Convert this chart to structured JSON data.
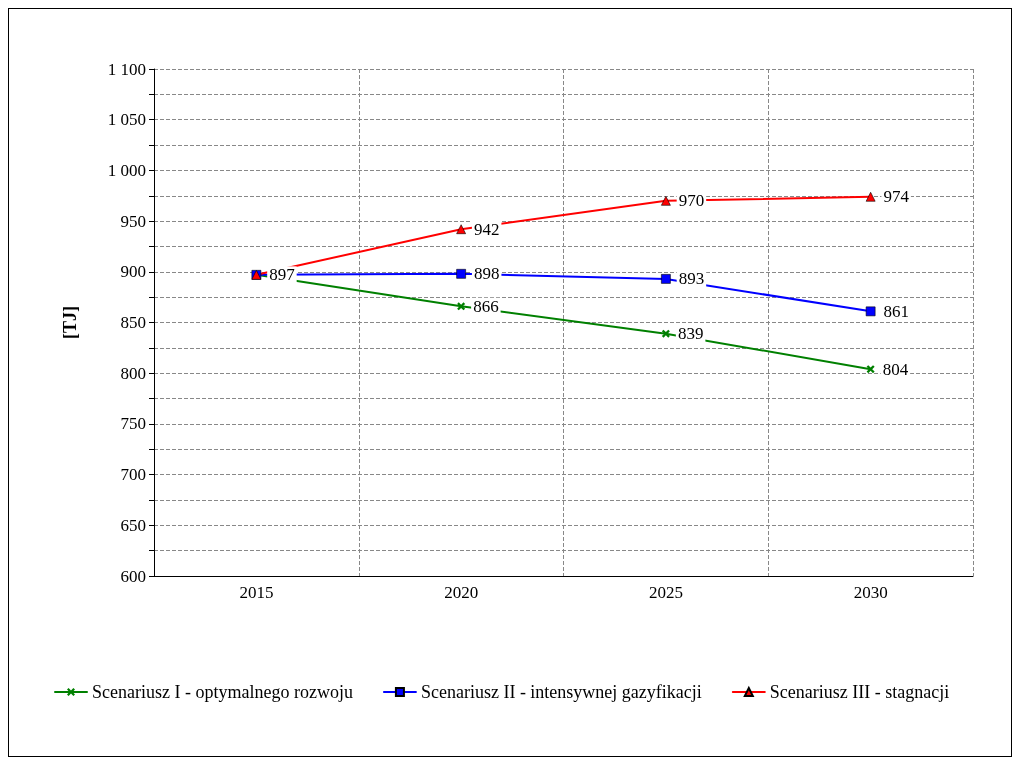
{
  "chart_data": {
    "type": "line",
    "ylabel": "[TJ]",
    "categories": [
      "2015",
      "2020",
      "2025",
      "2030"
    ],
    "ylim": [
      600,
      1100
    ],
    "yticks": [
      600,
      {
        "value": 625,
        "label": null
      },
      650,
      {
        "value": 675,
        "label": null
      },
      700,
      {
        "value": 725,
        "label": null
      },
      750,
      {
        "value": 775,
        "label": null
      },
      800,
      {
        "value": 825,
        "label": null
      },
      850,
      {
        "value": 875,
        "label": null
      },
      900,
      {
        "value": 925,
        "label": null
      },
      950,
      {
        "value": 975,
        "label": null
      },
      {
        "value": 1000,
        "label": "1 000"
      },
      {
        "value": 1025,
        "label": null
      },
      {
        "value": 1050,
        "label": "1 050"
      },
      {
        "value": 1075,
        "label": null
      },
      {
        "value": 1100,
        "label": "1 100"
      }
    ],
    "grid": true,
    "legend": "bottom",
    "series": [
      {
        "name": "Scenariusz I - optymalnego rozwoju",
        "color": "#008000",
        "marker": "cross",
        "values": [
          897,
          866,
          839,
          804
        ],
        "value_labels": [
          null,
          "866",
          "839",
          "804"
        ]
      },
      {
        "name": "Scenariusz II - intensywnej gazyfikacji",
        "color": "#0000ff",
        "marker": "square",
        "values": [
          897,
          898,
          893,
          861
        ],
        "value_labels": [
          null,
          "898",
          "893",
          "861"
        ]
      },
      {
        "name": "Scenariusz III - stagnacji",
        "color": "#ff0000",
        "marker": "triangle",
        "values": [
          897,
          942,
          970,
          974
        ],
        "value_labels": [
          "897",
          "942",
          "970",
          "974"
        ]
      }
    ]
  }
}
